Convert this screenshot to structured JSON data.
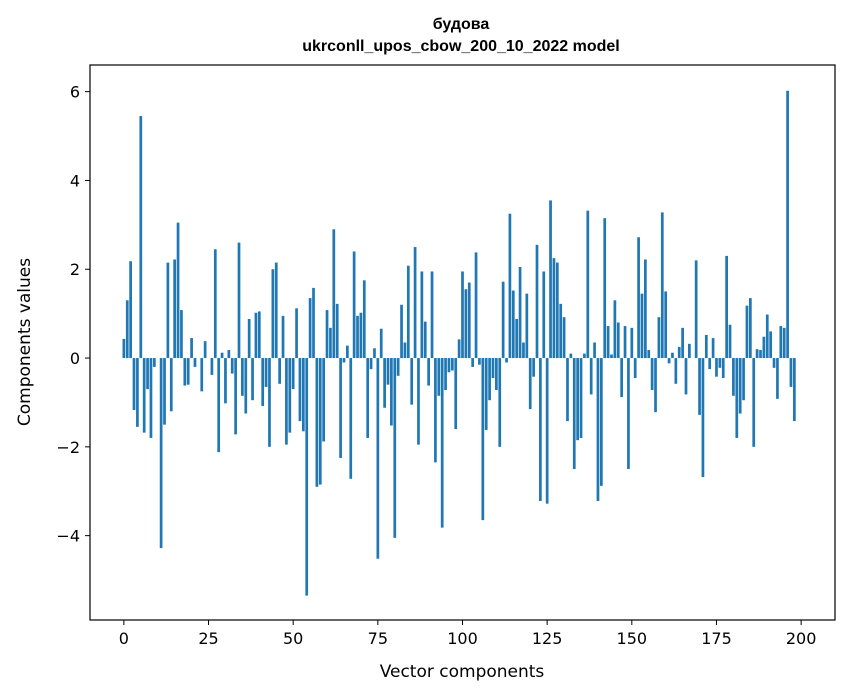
{
  "chart_data": {
    "type": "bar",
    "title_line1": "будова",
    "title_line2": "ukrconll_upos_cbow_200_10_2022 model",
    "xlabel": "Vector components",
    "ylabel": "Components values",
    "xlim": [
      -10,
      210
    ],
    "ylim": [
      -5.9,
      6.6
    ],
    "xticks": [
      0,
      25,
      50,
      75,
      100,
      125,
      150,
      175,
      200
    ],
    "xtick_labels": [
      "0",
      "25",
      "50",
      "75",
      "100",
      "125",
      "150",
      "175",
      "200"
    ],
    "yticks": [
      -4,
      -2,
      0,
      2,
      4,
      6
    ],
    "ytick_labels": [
      "−4",
      "−2",
      "0",
      "2",
      "4",
      "6"
    ],
    "bar_color": "#1f77b4",
    "values": [
      0.43,
      1.3,
      2.18,
      -1.17,
      -1.55,
      5.45,
      -1.68,
      -0.7,
      -1.8,
      -0.2,
      0.0,
      -4.28,
      -1.5,
      2.15,
      -1.2,
      2.22,
      3.05,
      1.08,
      -0.62,
      -0.6,
      0.45,
      -0.2,
      0.0,
      -0.75,
      0.38,
      0.0,
      -0.38,
      2.45,
      -2.12,
      0.12,
      -1.02,
      0.18,
      -0.35,
      -1.72,
      2.6,
      -0.85,
      -1.25,
      0.88,
      -0.95,
      1.02,
      1.05,
      -1.08,
      -0.65,
      -2.0,
      2.0,
      2.15,
      -0.58,
      0.95,
      -1.95,
      -1.68,
      -0.7,
      1.12,
      -1.42,
      -1.65,
      -5.35,
      1.35,
      1.58,
      -2.9,
      -2.85,
      -1.88,
      1.08,
      0.68,
      2.9,
      1.22,
      -2.25,
      -0.1,
      0.28,
      -2.72,
      2.4,
      0.95,
      1.02,
      1.75,
      -1.8,
      -0.25,
      0.22,
      -4.52,
      0.66,
      -1.12,
      -0.6,
      -1.52,
      -4.05,
      -0.4,
      1.2,
      0.35,
      2.08,
      -1.05,
      2.5,
      -1.95,
      1.95,
      0.82,
      -0.62,
      1.95,
      -2.35,
      -0.85,
      -3.82,
      -0.72,
      -0.32,
      -0.28,
      -1.6,
      0.42,
      1.95,
      1.55,
      1.7,
      -0.2,
      2.38,
      -0.15,
      -3.65,
      -1.62,
      -0.95,
      -0.45,
      -0.72,
      -2.0,
      1.72,
      -0.1,
      3.25,
      1.52,
      0.88,
      2.05,
      0.35,
      1.45,
      -1.15,
      -0.42,
      2.55,
      -3.22,
      1.95,
      -3.28,
      3.55,
      2.25,
      2.15,
      1.22,
      0.92,
      -1.42,
      0.1,
      -2.5,
      -1.85,
      -1.8,
      0.1,
      3.32,
      -0.82,
      0.35,
      -3.22,
      -2.88,
      3.15,
      0.72,
      0.08,
      1.3,
      0.8,
      -0.88,
      0.72,
      -2.5,
      0.68,
      -0.45,
      2.72,
      1.45,
      2.22,
      0.18,
      -0.72,
      -1.22,
      0.92,
      3.28,
      1.5,
      -0.12,
      0.12,
      -0.58,
      0.25,
      0.68,
      -0.82,
      0.32,
      0.0,
      2.2,
      -1.28,
      -2.68,
      0.52,
      -0.25,
      0.45,
      -0.42,
      -0.22,
      -0.45,
      2.3,
      0.75,
      -0.85,
      -1.8,
      -1.25,
      -0.95,
      1.18,
      1.35,
      -2.0,
      0.2,
      0.18,
      0.48,
      0.98,
      0.6,
      -0.22,
      -0.92,
      0.72,
      0.68,
      6.02,
      -0.65,
      -1.42
    ]
  }
}
